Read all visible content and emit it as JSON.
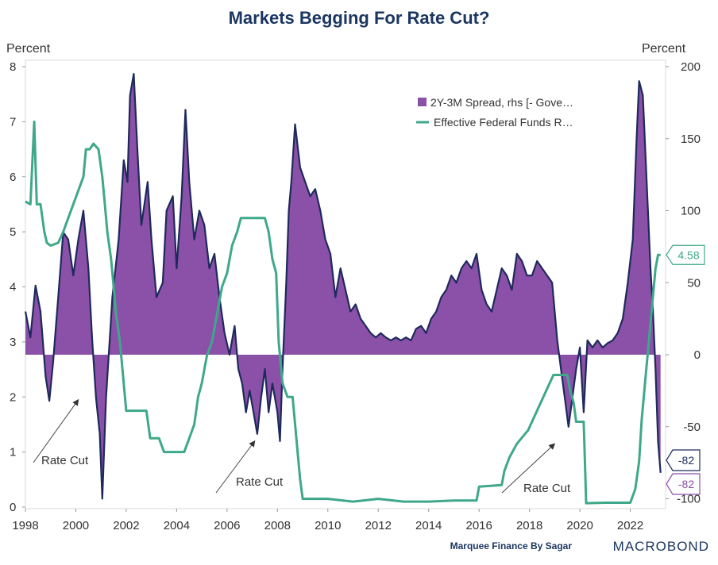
{
  "chart_data": {
    "type": "line",
    "title": "Markets Begging For Rate Cut?",
    "left_axis": {
      "unit": "Percent",
      "range": [
        0,
        8
      ],
      "ticks": [
        0,
        1,
        2,
        3,
        4,
        5,
        6,
        7,
        8
      ]
    },
    "right_axis": {
      "unit": "Percent",
      "range": [
        -105,
        200
      ],
      "ticks": [
        -100,
        -50,
        0,
        50,
        100,
        150,
        200
      ]
    },
    "x_axis": {
      "range": [
        1998,
        2023.4
      ],
      "ticks": [
        1998,
        2000,
        2002,
        2004,
        2006,
        2008,
        2010,
        2012,
        2014,
        2016,
        2018,
        2020,
        2022
      ]
    },
    "legend_position": "top-right",
    "series": [
      {
        "name": "2Y-3M Spread, rhs [- Gove…",
        "axis": "right",
        "style": "area",
        "color": "#8b50a7",
        "line_color": "#1e2a5c",
        "points": [
          [
            1998.0,
            30
          ],
          [
            1998.2,
            12
          ],
          [
            1998.4,
            48
          ],
          [
            1998.6,
            30
          ],
          [
            1998.8,
            -15
          ],
          [
            1998.95,
            -32
          ],
          [
            1999.1,
            -5
          ],
          [
            1999.3,
            40
          ],
          [
            1999.5,
            85
          ],
          [
            1999.7,
            80
          ],
          [
            1999.9,
            55
          ],
          [
            2000.1,
            80
          ],
          [
            2000.3,
            100
          ],
          [
            2000.5,
            60
          ],
          [
            2000.65,
            10
          ],
          [
            2000.8,
            -30
          ],
          [
            2000.95,
            -55
          ],
          [
            2001.05,
            -100
          ],
          [
            2001.2,
            -30
          ],
          [
            2001.45,
            40
          ],
          [
            2001.7,
            80
          ],
          [
            2001.9,
            135
          ],
          [
            2002.05,
            120
          ],
          [
            2002.15,
            180
          ],
          [
            2002.3,
            195
          ],
          [
            2002.45,
            140
          ],
          [
            2002.6,
            90
          ],
          [
            2002.85,
            120
          ],
          [
            2003.0,
            80
          ],
          [
            2003.2,
            40
          ],
          [
            2003.45,
            50
          ],
          [
            2003.6,
            100
          ],
          [
            2003.85,
            110
          ],
          [
            2004.0,
            60
          ],
          [
            2004.2,
            110
          ],
          [
            2004.35,
            170
          ],
          [
            2004.5,
            120
          ],
          [
            2004.7,
            80
          ],
          [
            2004.9,
            100
          ],
          [
            2005.1,
            90
          ],
          [
            2005.3,
            60
          ],
          [
            2005.5,
            70
          ],
          [
            2005.7,
            40
          ],
          [
            2005.9,
            15
          ],
          [
            2006.1,
            0
          ],
          [
            2006.3,
            20
          ],
          [
            2006.45,
            -10
          ],
          [
            2006.6,
            -20
          ],
          [
            2006.75,
            -40
          ],
          [
            2006.9,
            -25
          ],
          [
            2007.05,
            -40
          ],
          [
            2007.2,
            -55
          ],
          [
            2007.35,
            -30
          ],
          [
            2007.5,
            -10
          ],
          [
            2007.65,
            -40
          ],
          [
            2007.8,
            -20
          ],
          [
            2008.0,
            -40
          ],
          [
            2008.1,
            -60
          ],
          [
            2008.2,
            -10
          ],
          [
            2008.35,
            50
          ],
          [
            2008.45,
            100
          ],
          [
            2008.55,
            120
          ],
          [
            2008.7,
            160
          ],
          [
            2008.9,
            130
          ],
          [
            2009.1,
            120
          ],
          [
            2009.3,
            110
          ],
          [
            2009.5,
            115
          ],
          [
            2009.7,
            100
          ],
          [
            2009.9,
            80
          ],
          [
            2010.1,
            70
          ],
          [
            2010.3,
            40
          ],
          [
            2010.5,
            60
          ],
          [
            2010.7,
            45
          ],
          [
            2010.9,
            30
          ],
          [
            2011.1,
            35
          ],
          [
            2011.3,
            25
          ],
          [
            2011.5,
            20
          ],
          [
            2011.7,
            15
          ],
          [
            2011.9,
            12
          ],
          [
            2012.1,
            15
          ],
          [
            2012.3,
            12
          ],
          [
            2012.5,
            10
          ],
          [
            2012.7,
            12
          ],
          [
            2012.9,
            10
          ],
          [
            2013.1,
            12
          ],
          [
            2013.3,
            10
          ],
          [
            2013.5,
            18
          ],
          [
            2013.7,
            20
          ],
          [
            2013.9,
            15
          ],
          [
            2014.1,
            25
          ],
          [
            2014.3,
            30
          ],
          [
            2014.5,
            40
          ],
          [
            2014.7,
            45
          ],
          [
            2014.9,
            55
          ],
          [
            2015.1,
            50
          ],
          [
            2015.3,
            60
          ],
          [
            2015.5,
            65
          ],
          [
            2015.7,
            60
          ],
          [
            2015.9,
            70
          ],
          [
            2016.1,
            45
          ],
          [
            2016.3,
            35
          ],
          [
            2016.5,
            30
          ],
          [
            2016.7,
            45
          ],
          [
            2016.9,
            60
          ],
          [
            2017.1,
            55
          ],
          [
            2017.3,
            45
          ],
          [
            2017.5,
            70
          ],
          [
            2017.7,
            65
          ],
          [
            2017.9,
            55
          ],
          [
            2018.1,
            55
          ],
          [
            2018.3,
            65
          ],
          [
            2018.5,
            60
          ],
          [
            2018.7,
            55
          ],
          [
            2018.9,
            50
          ],
          [
            2019.1,
            10
          ],
          [
            2019.25,
            -10
          ],
          [
            2019.4,
            -30
          ],
          [
            2019.55,
            -50
          ],
          [
            2019.7,
            -30
          ],
          [
            2019.85,
            -10
          ],
          [
            2020.0,
            5
          ],
          [
            2020.15,
            -40
          ],
          [
            2020.3,
            10
          ],
          [
            2020.5,
            5
          ],
          [
            2020.7,
            10
          ],
          [
            2020.9,
            5
          ],
          [
            2021.1,
            8
          ],
          [
            2021.3,
            10
          ],
          [
            2021.5,
            15
          ],
          [
            2021.7,
            25
          ],
          [
            2021.9,
            50
          ],
          [
            2022.1,
            80
          ],
          [
            2022.25,
            150
          ],
          [
            2022.35,
            190
          ],
          [
            2022.5,
            180
          ],
          [
            2022.65,
            120
          ],
          [
            2022.8,
            60
          ],
          [
            2022.9,
            30
          ],
          [
            2023.0,
            -10
          ],
          [
            2023.1,
            -60
          ],
          [
            2023.2,
            -82
          ]
        ]
      },
      {
        "name": "Effective Federal Funds R…",
        "axis": "left",
        "style": "line",
        "color": "#3fa88a",
        "points": [
          [
            1998.0,
            5.55
          ],
          [
            1998.2,
            5.5
          ],
          [
            1998.35,
            7.0
          ],
          [
            1998.45,
            5.5
          ],
          [
            1998.6,
            5.5
          ],
          [
            1998.75,
            5.0
          ],
          [
            1998.85,
            4.8
          ],
          [
            1999.0,
            4.75
          ],
          [
            1999.3,
            4.8
          ],
          [
            1999.5,
            5.0
          ],
          [
            1999.7,
            5.25
          ],
          [
            1999.9,
            5.5
          ],
          [
            2000.1,
            5.75
          ],
          [
            2000.3,
            6.0
          ],
          [
            2000.4,
            6.5
          ],
          [
            2000.55,
            6.5
          ],
          [
            2000.7,
            6.6
          ],
          [
            2000.9,
            6.5
          ],
          [
            2001.05,
            6.0
          ],
          [
            2001.15,
            5.5
          ],
          [
            2001.25,
            5.0
          ],
          [
            2001.4,
            4.5
          ],
          [
            2001.5,
            4.0
          ],
          [
            2001.6,
            3.5
          ],
          [
            2001.75,
            3.0
          ],
          [
            2001.85,
            2.5
          ],
          [
            2002.0,
            1.75
          ],
          [
            2002.4,
            1.75
          ],
          [
            2002.8,
            1.75
          ],
          [
            2002.95,
            1.25
          ],
          [
            2003.3,
            1.25
          ],
          [
            2003.5,
            1.0
          ],
          [
            2003.9,
            1.0
          ],
          [
            2004.3,
            1.0
          ],
          [
            2004.5,
            1.25
          ],
          [
            2004.7,
            1.5
          ],
          [
            2004.85,
            2.0
          ],
          [
            2005.0,
            2.25
          ],
          [
            2005.2,
            2.75
          ],
          [
            2005.4,
            3.0
          ],
          [
            2005.6,
            3.5
          ],
          [
            2005.8,
            4.0
          ],
          [
            2006.0,
            4.25
          ],
          [
            2006.2,
            4.75
          ],
          [
            2006.4,
            5.0
          ],
          [
            2006.55,
            5.25
          ],
          [
            2007.0,
            5.25
          ],
          [
            2007.5,
            5.25
          ],
          [
            2007.65,
            5.0
          ],
          [
            2007.8,
            4.5
          ],
          [
            2007.95,
            4.25
          ],
          [
            2008.05,
            3.0
          ],
          [
            2008.2,
            2.25
          ],
          [
            2008.4,
            2.0
          ],
          [
            2008.6,
            2.0
          ],
          [
            2008.8,
            1.0
          ],
          [
            2008.9,
            0.5
          ],
          [
            2009.0,
            0.15
          ],
          [
            2010.0,
            0.15
          ],
          [
            2011.0,
            0.1
          ],
          [
            2012.0,
            0.15
          ],
          [
            2013.0,
            0.1
          ],
          [
            2014.0,
            0.1
          ],
          [
            2015.0,
            0.12
          ],
          [
            2015.9,
            0.12
          ],
          [
            2016.0,
            0.37
          ],
          [
            2016.9,
            0.4
          ],
          [
            2017.0,
            0.65
          ],
          [
            2017.2,
            0.9
          ],
          [
            2017.5,
            1.15
          ],
          [
            2017.95,
            1.4
          ],
          [
            2018.2,
            1.65
          ],
          [
            2018.45,
            1.9
          ],
          [
            2018.7,
            2.15
          ],
          [
            2018.95,
            2.4
          ],
          [
            2019.5,
            2.4
          ],
          [
            2019.6,
            2.15
          ],
          [
            2019.75,
            1.9
          ],
          [
            2019.85,
            1.55
          ],
          [
            2020.15,
            1.55
          ],
          [
            2020.2,
            0.8
          ],
          [
            2020.25,
            0.07
          ],
          [
            2021.0,
            0.08
          ],
          [
            2022.0,
            0.08
          ],
          [
            2022.2,
            0.33
          ],
          [
            2022.35,
            0.83
          ],
          [
            2022.45,
            1.58
          ],
          [
            2022.6,
            2.33
          ],
          [
            2022.75,
            3.08
          ],
          [
            2022.9,
            3.83
          ],
          [
            2023.0,
            4.33
          ],
          [
            2023.1,
            4.58
          ],
          [
            2023.2,
            4.58
          ]
        ]
      }
    ],
    "annotations": [
      {
        "text": "Rate Cut",
        "points_to": [
          2000.1,
          1.95
        ]
      },
      {
        "text": "Rate Cut",
        "points_to": [
          2007.1,
          1.2
        ]
      },
      {
        "text": "Rate Cut",
        "points_to": [
          2019.0,
          1.15
        ]
      }
    ],
    "value_tags": {
      "fed_funds_last": "4.58",
      "spread_last_a": "-82",
      "spread_last_b": "-82"
    },
    "credit": "Marquee Finance By Sagar",
    "brand": "MACROBOND"
  }
}
